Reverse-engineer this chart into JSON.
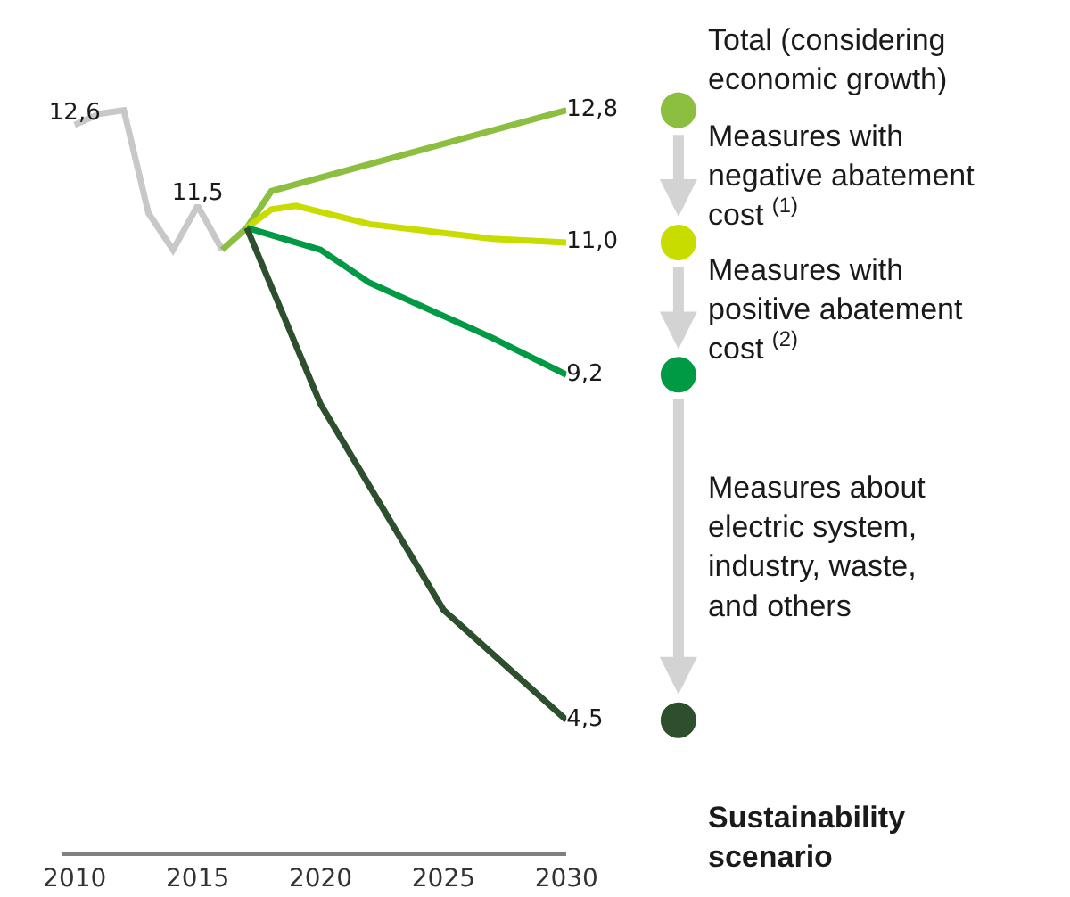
{
  "chart_data": {
    "type": "line",
    "series": [
      {
        "color": "#c8c8c8",
        "x": [
          2010,
          2011,
          2012,
          2013,
          2014,
          2015,
          2016
        ],
        "values": [
          12.6,
          12.75,
          12.8,
          11.4,
          10.9,
          11.5,
          10.9
        ],
        "value_labels": [
          "12,6",
          null,
          null,
          null,
          null,
          "11,5",
          null
        ]
      },
      {
        "name": "Total (considering economic growth)",
        "color": "#8cbf3f",
        "x": [
          2016,
          2017,
          2018,
          2030
        ],
        "values": [
          10.9,
          11.2,
          11.7,
          12.8
        ],
        "value_labels": [
          null,
          null,
          null,
          "12,8"
        ]
      },
      {
        "color": "#c8dc00",
        "x": [
          2017,
          2018,
          2019,
          2022,
          2027,
          2030
        ],
        "values": [
          11.2,
          11.45,
          11.5,
          11.25,
          11.05,
          11.0
        ],
        "value_labels": [
          null,
          null,
          null,
          null,
          null,
          "11,0"
        ]
      },
      {
        "color": "#009a44",
        "x": [
          2017,
          2018,
          2020,
          2022,
          2025,
          2027,
          2030
        ],
        "values": [
          11.2,
          11.1,
          10.9,
          10.45,
          10.0,
          9.7,
          9.2
        ],
        "value_labels": [
          null,
          null,
          null,
          null,
          null,
          null,
          "9,2"
        ]
      },
      {
        "name": "Sustainability scenario",
        "color": "#2d4f2e",
        "x": [
          2017,
          2020,
          2025,
          2030
        ],
        "values": [
          11.2,
          8.8,
          6.0,
          4.5
        ],
        "value_labels": [
          null,
          null,
          null,
          "4,5"
        ]
      }
    ],
    "annotations": [
      "Measures with negative abatement cost $^{(1)}$",
      "Measures with positive abatement cost $^{(2)}$",
      "Measures about electric system, industry, waste, and others"
    ],
    "xlim": [
      2009.5,
      2030
    ],
    "xticks": [
      2010,
      2015,
      2020,
      2025,
      2030
    ],
    "ylim": [
      2.7,
      14.3
    ],
    "tick_labels": "x",
    "legend": false,
    "marker": "none",
    "line_style": "solid"
  }
}
